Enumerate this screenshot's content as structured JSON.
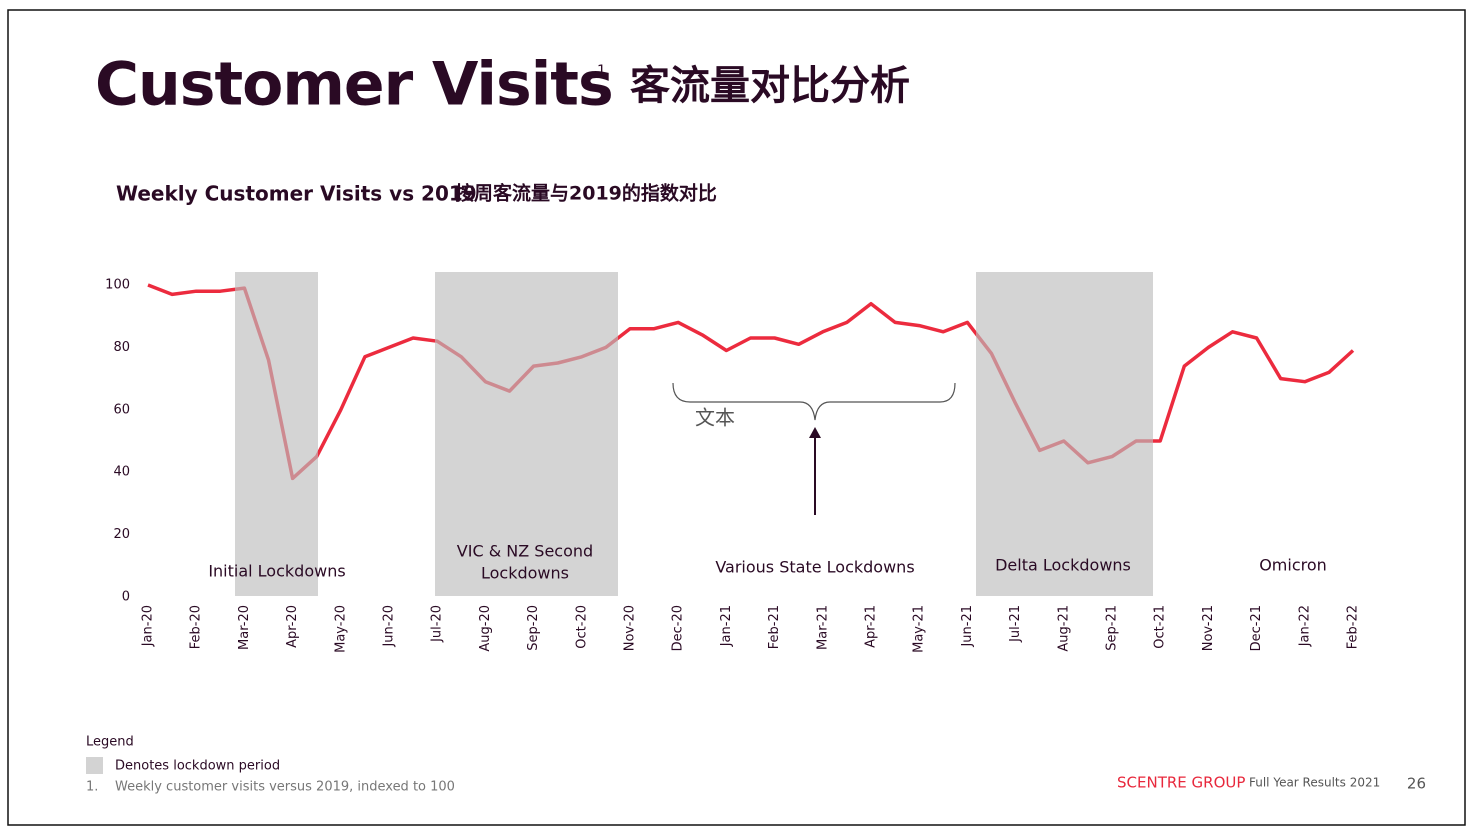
{
  "chart_data": {
    "type": "line",
    "title": "Customer Visits",
    "title_note": "1",
    "title_cn": "客流量对比分析",
    "subtitle": "Weekly Customer Visits vs 2019",
    "subtitle_cn": "按周客流量与2019的指数对比",
    "categories": [
      "Jan-20",
      null,
      "Feb-20",
      null,
      "Mar-20",
      null,
      "Apr-20",
      null,
      "May-20",
      null,
      "Jun-20",
      null,
      "Jul-20",
      null,
      "Aug-20",
      null,
      "Sep-20",
      null,
      "Oct-20",
      null,
      "Nov-20",
      null,
      "Dec-20",
      null,
      "Jan-21",
      null,
      "Feb-21",
      null,
      "Mar-21",
      null,
      "Apr-21",
      null,
      "May-21",
      null,
      "Jun-21",
      null,
      "Jul-21",
      null,
      "Aug-21",
      null,
      "Sep-21",
      null,
      "Oct-21",
      null,
      "Nov-21",
      null,
      "Dec-21",
      null,
      "Jan-22",
      null,
      "Feb-22"
    ],
    "series": [
      {
        "name": "Weekly customer visits",
        "color": "#ec2b3e",
        "values": [
          100,
          97,
          98,
          98,
          99,
          76,
          38,
          45,
          60,
          77,
          80,
          83,
          82,
          77,
          69,
          66,
          74,
          75,
          77,
          80,
          86,
          86,
          88,
          84,
          79,
          83,
          83,
          81,
          85,
          88,
          94,
          88,
          87,
          85,
          88,
          78,
          62,
          47,
          50,
          43,
          45,
          50,
          50,
          74,
          80,
          85,
          83,
          70,
          69,
          72,
          79
        ]
      }
    ],
    "ylim": [
      0,
      100
    ],
    "yticks": [
      0,
      20,
      40,
      60,
      80,
      100
    ],
    "grid": false,
    "annotations": [
      "Initial Lockdowns",
      "VIC & NZ Second",
      "Lockdowns",
      "Various State Lockdowns",
      "Delta Lockdowns",
      "Omicron",
      "文本"
    ],
    "legend": {
      "title": "Legend",
      "entry": "Denotes lockdown period"
    },
    "footnote": {
      "number": "1.",
      "text": "Weekly customer visits versus 2019, indexed to 100"
    },
    "footer": {
      "brand": "SCENTRE GROUP",
      "report": "Full Year Results 2021",
      "page": "26"
    }
  }
}
